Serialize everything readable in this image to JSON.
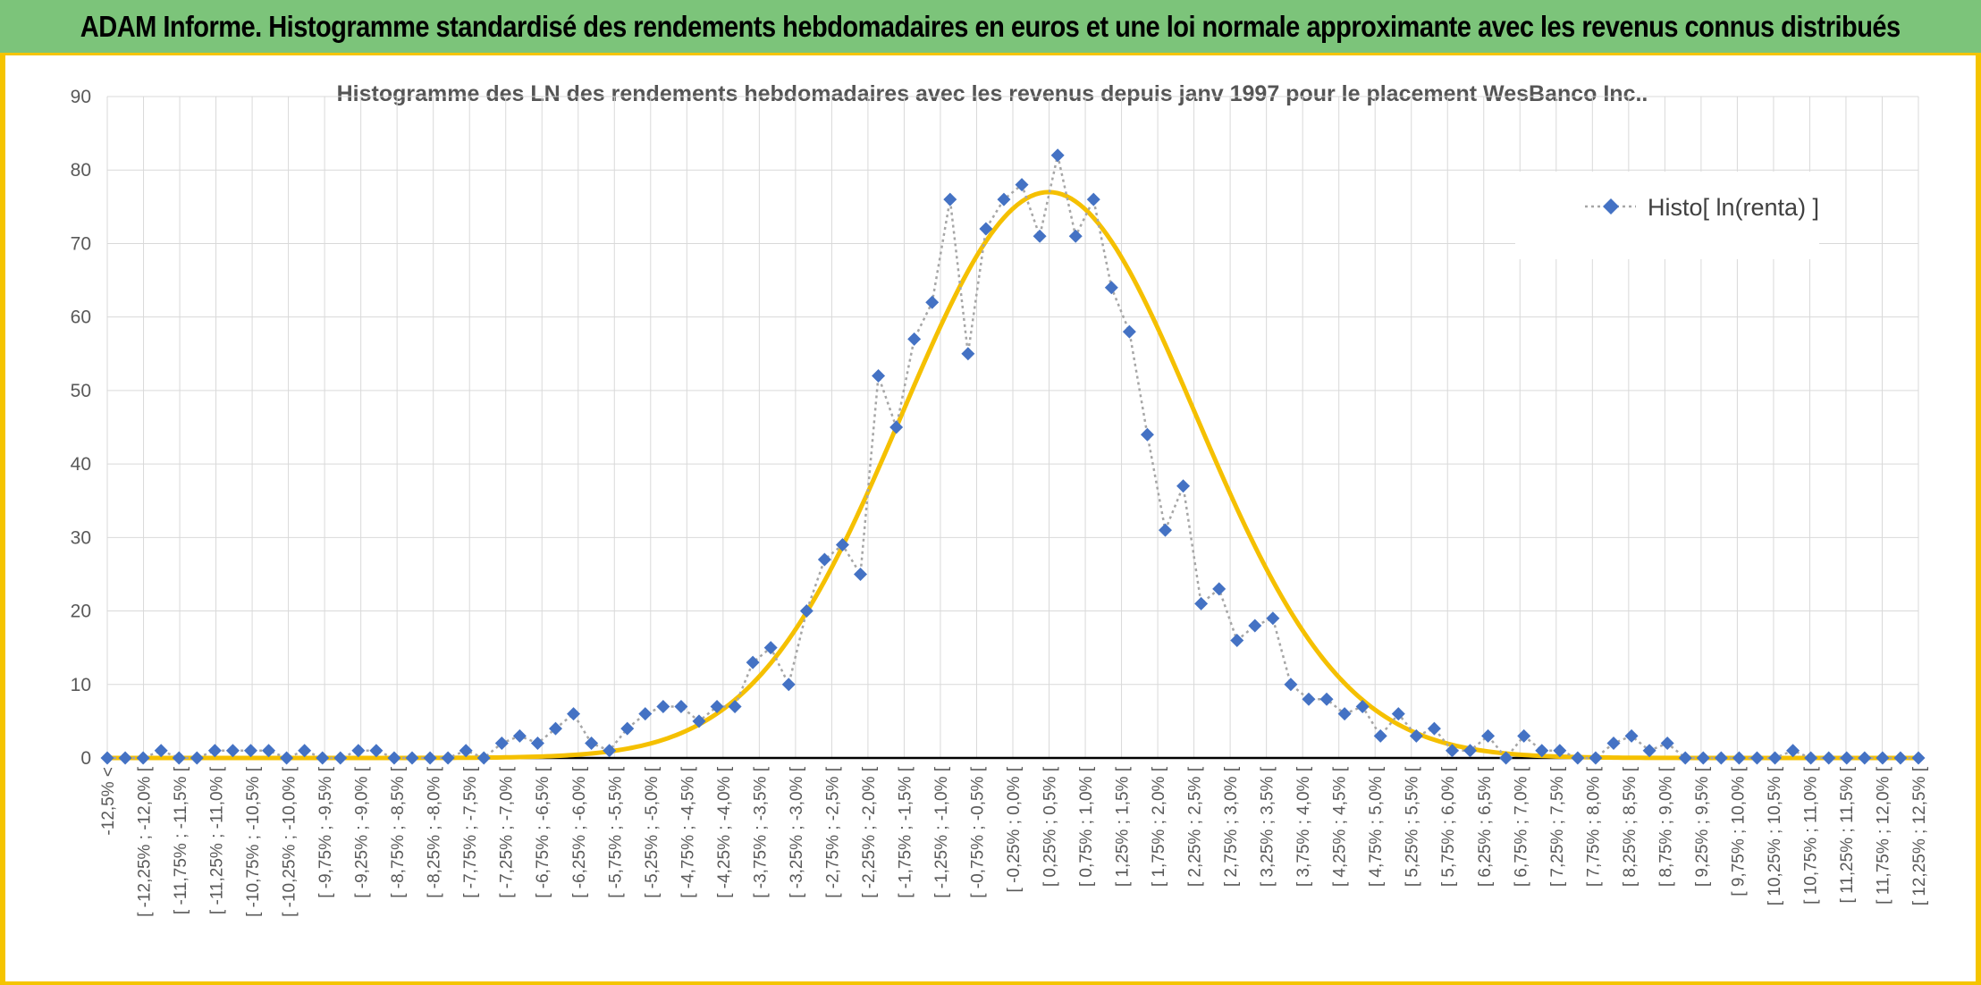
{
  "header": {
    "title": "ADAM Informe. Histogramme standardisé des rendements hebdomadaires en euros et une loi normale approximante avec les revenus connus distribués"
  },
  "colors": {
    "header_bg": "#7cc47a",
    "border": "#f5c400",
    "marker": "#4472c4",
    "connector": "#a6a6a6",
    "normal_curve": "#f5c000",
    "grid": "#d9d9d9"
  },
  "chart_data": {
    "type": "scatter",
    "title": "Histogramme des LN des rendements hebdomadaires avec les revenus depuis janv 1997 pour le placement WesBanco Inc..",
    "xlabel": "",
    "ylabel": "",
    "ylim": [
      0,
      90
    ],
    "yticks": [
      0,
      10,
      20,
      30,
      40,
      50,
      60,
      70,
      80,
      90
    ],
    "grid": true,
    "legend_position": "top-right",
    "categories": [
      "-12,5% <",
      "[ -12,25% ; -12,0% [",
      "[ -11,75% ; -11,5% [",
      "[ -11,25% ; -11,0% [",
      "[ -10,75% ; -10,5% [",
      "[ -10,25% ; -10,0% [",
      "[ -9,75% ; -9,5% [",
      "[ -9,25% ; -9,0% [",
      "[ -8,75% ; -8,5% [",
      "[ -8,25% ; -8,0% [",
      "[ -7,75% ; -7,5% [",
      "[ -7,25% ; -7,0% [",
      "[ -6,75% ; -6,5% [",
      "[ -6,25% ; -6,0% [",
      "[ -5,75% ; -5,5% [",
      "[ -5,25% ; -5,0% [",
      "[ -4,75% ; -4,5% [",
      "[ -4,25% ; -4,0% [",
      "[ -3,75% ; -3,5% [",
      "[ -3,25% ; -3,0% [",
      "[ -2,75% ; -2,5% [",
      "[ -2,25% ; -2,0% [",
      "[ -1,75% ; -1,5% [",
      "[ -1,25% ; -1,0% [",
      "[ -0,75% ; -0,5% [",
      "[ -0,25% ; 0,0% [",
      "[ 0,25% ; 0,5% [",
      "[ 0,75% ; 1,0% [",
      "[ 1,25% ; 1,5% [",
      "[ 1,75% ; 2,0% [",
      "[ 2,25% ; 2,5% [",
      "[ 2,75% ; 3,0% [",
      "[ 3,25% ; 3,5% [",
      "[ 3,75% ; 4,0% [",
      "[ 4,25% ; 4,5% [",
      "[ 4,75% ; 5,0% [",
      "[ 5,25% ; 5,5% [",
      "[ 5,75% ; 6,0% [",
      "[ 6,25% ; 6,5% [",
      "[ 6,75% ; 7,0% [",
      "[ 7,25% ; 7,5% [",
      "[ 7,75% ; 8,0% [",
      "[ 8,25% ; 8,5% [",
      "[ 8,75% ; 9,0% [",
      "[ 9,25% ; 9,5% [",
      "[ 9,75% ; 10,0% [",
      "[ 10,25% ; 10,5% [",
      "[ 10,75% ; 11,0% [",
      "[ 11,25% ; 11,5% [",
      "[ 11,75% ; 12,0% [",
      "[ 12,25% ; 12,5% ["
    ],
    "series": [
      {
        "name": "Histo[ ln(renta) ]",
        "style": "diamond markers with dotted connector",
        "values": [
          0,
          0,
          0,
          1,
          0,
          0,
          1,
          1,
          1,
          1,
          0,
          1,
          0,
          0,
          1,
          1,
          0,
          0,
          0,
          0,
          1,
          0,
          2,
          3,
          2,
          4,
          6,
          2,
          1,
          4,
          6,
          7,
          7,
          5,
          7,
          7,
          13,
          15,
          10,
          20,
          27,
          29,
          25,
          52,
          45,
          57,
          62,
          76,
          55,
          72,
          76,
          78,
          71,
          82,
          71,
          76,
          64,
          58,
          44,
          31,
          37,
          21,
          23,
          16,
          18,
          19,
          10,
          8,
          8,
          6,
          7,
          3,
          6,
          3,
          4,
          1,
          1,
          3,
          0,
          3,
          1,
          1,
          0,
          0,
          2,
          3,
          1,
          2,
          0,
          0,
          0,
          0,
          0,
          0,
          1,
          0,
          0,
          0,
          0,
          0,
          0,
          0
        ]
      },
      {
        "name": "",
        "style": "smooth line (approximating normal distribution)",
        "peak": 77,
        "mean_bin": 52.5,
        "sd_bins": 8.2
      }
    ]
  }
}
